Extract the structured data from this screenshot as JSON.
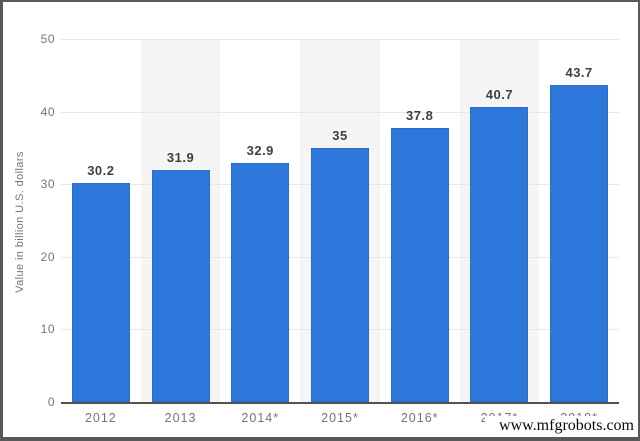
{
  "watermark": {
    "text": "www.mfgrobots.com"
  },
  "chart_data": {
    "type": "bar",
    "title": "",
    "xlabel": "",
    "ylabel": "Value in billion U.S. dollars",
    "categories": [
      "2012",
      "2013",
      "2014*",
      "2015*",
      "2016*",
      "2017*",
      "2018*"
    ],
    "values": [
      30.2,
      31.9,
      32.9,
      35,
      37.8,
      40.7,
      43.7
    ],
    "value_labels": [
      "30.2",
      "31.9",
      "32.9",
      "35",
      "37.8",
      "40.7",
      "43.7"
    ],
    "ylim": [
      0,
      50
    ],
    "yticks": [
      0,
      10,
      20,
      30,
      40,
      50
    ],
    "ytick_labels": [
      "0",
      "10",
      "20",
      "30",
      "40",
      "50"
    ],
    "grid": "horizontal",
    "legend": "none",
    "banded_columns": [
      1,
      3,
      5
    ],
    "colors": {
      "bar": "#2e78dc",
      "bar_border": "#2a6dca",
      "band": "#f5f5f6",
      "gridline": "#e8e8e8",
      "axis_line": "#515151",
      "tick_label": "#757575",
      "value_label": "#3f3f3f",
      "frame_border": "#595959",
      "background": "#ffffff"
    }
  }
}
